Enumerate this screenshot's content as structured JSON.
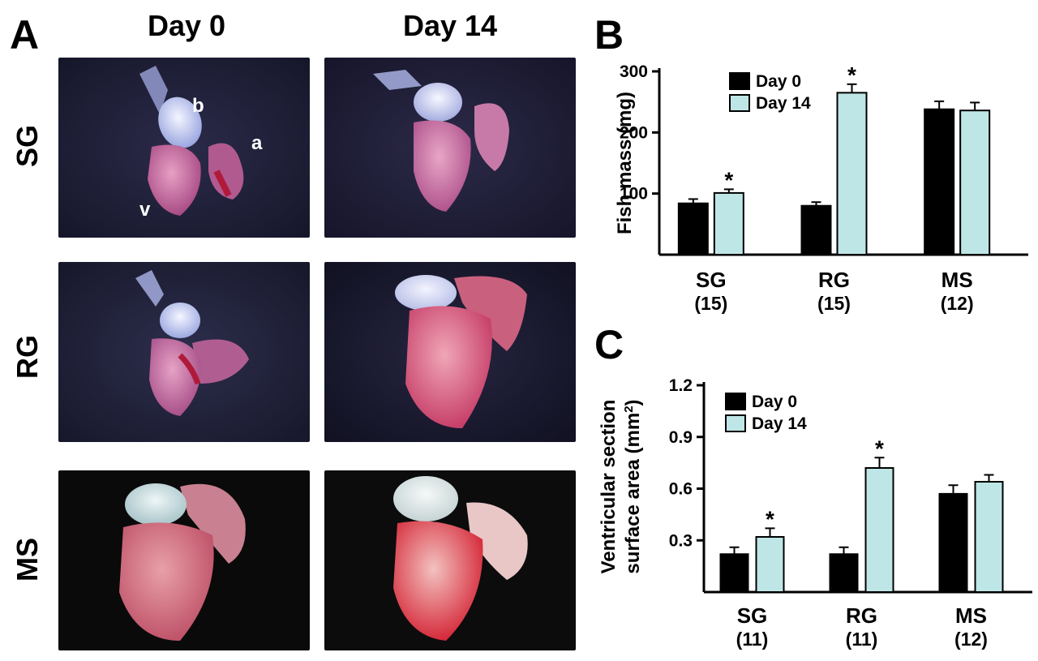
{
  "panel_a": {
    "letter": "A",
    "columns": [
      "Day 0",
      "Day 14"
    ],
    "rows": [
      "SG",
      "RG",
      "MS"
    ],
    "annotations": {
      "b": "b",
      "a": "a",
      "v": "v"
    }
  },
  "chart_data": [
    {
      "panel": "B",
      "type": "bar",
      "categories": [
        "SG",
        "RG",
        "MS"
      ],
      "category_n": [
        "(15)",
        "(15)",
        "(12)"
      ],
      "series": [
        {
          "name": "Day 0",
          "values": [
            84,
            80,
            238
          ],
          "errors": [
            7,
            6,
            13
          ],
          "color": "#000000"
        },
        {
          "name": "Day 14",
          "values": [
            101,
            265,
            236
          ],
          "errors": [
            6,
            14,
            13
          ],
          "color": "#bfe6e6"
        }
      ],
      "significance": [
        [
          false,
          true
        ],
        [
          false,
          true
        ],
        [
          false,
          false
        ]
      ],
      "star": "*",
      "ylabel": "Fish mass (mg)",
      "ylim": [
        0,
        300
      ],
      "yticks": [
        100,
        200,
        300
      ],
      "legend": "top-left"
    },
    {
      "panel": "C",
      "type": "bar",
      "categories": [
        "SG",
        "RG",
        "MS"
      ],
      "category_n": [
        "(11)",
        "(11)",
        "(12)"
      ],
      "series": [
        {
          "name": "Day 0",
          "values": [
            0.22,
            0.22,
            0.57
          ],
          "errors": [
            0.04,
            0.04,
            0.05
          ],
          "color": "#000000"
        },
        {
          "name": "Day 14",
          "values": [
            0.32,
            0.72,
            0.64
          ],
          "errors": [
            0.05,
            0.06,
            0.04
          ],
          "color": "#bfe6e6"
        }
      ],
      "significance": [
        [
          false,
          true
        ],
        [
          false,
          true
        ],
        [
          false,
          false
        ]
      ],
      "star": "*",
      "ylabel_line1": "Ventricular section",
      "ylabel_line2": "surface area (mm",
      "ylabel_sup": "2",
      "ylabel_close": ")",
      "ylim": [
        0,
        1.2
      ],
      "yticks": [
        "0.3",
        "0.6",
        "0.9",
        "1.2"
      ],
      "legend": "top-left"
    }
  ]
}
